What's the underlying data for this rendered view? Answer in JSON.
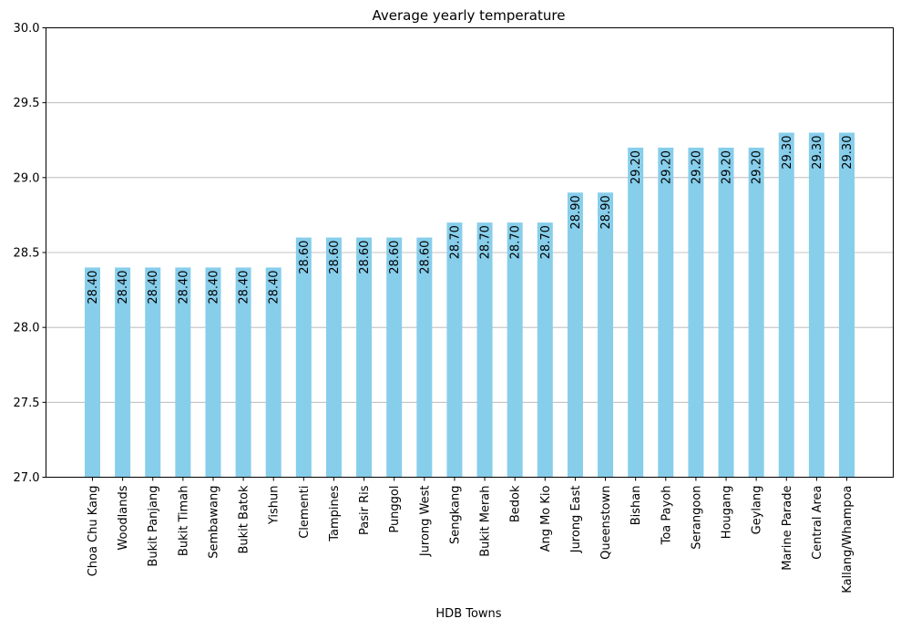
{
  "chart_data": {
    "type": "bar",
    "title": "Average yearly temperature",
    "xlabel": "HDB Towns",
    "ylabel": "",
    "ylim": [
      27.0,
      30.0
    ],
    "yticks": [
      "27.0",
      "27.5",
      "28.0",
      "28.5",
      "29.0",
      "29.5",
      "30.0"
    ],
    "grid": "y-axis only",
    "bar_color": "#87ceeb",
    "categories": [
      "Choa Chu Kang",
      "Woodlands",
      "Bukit Panjang",
      "Bukit Timah",
      "Sembawang",
      "Bukit Batok",
      "Yishun",
      "Clementi",
      "Tampines",
      "Pasir Ris",
      "Punggol",
      "Jurong West",
      "Sengkang",
      "Bukit Merah",
      "Bedok",
      "Ang Mo Kio",
      "Jurong East",
      "Queenstown",
      "Bishan",
      "Toa Payoh",
      "Serangoon",
      "Hougang",
      "Geylang",
      "Marine Parade",
      "Central Area",
      "Kallang/Whampoa"
    ],
    "values": [
      28.4,
      28.4,
      28.4,
      28.4,
      28.4,
      28.4,
      28.4,
      28.6,
      28.6,
      28.6,
      28.6,
      28.6,
      28.7,
      28.7,
      28.7,
      28.7,
      28.9,
      28.9,
      29.2,
      29.2,
      29.2,
      29.2,
      29.2,
      29.3,
      29.3,
      29.3
    ],
    "data_labels": [
      "28.40",
      "28.40",
      "28.40",
      "28.40",
      "28.40",
      "28.40",
      "28.40",
      "28.60",
      "28.60",
      "28.60",
      "28.60",
      "28.60",
      "28.70",
      "28.70",
      "28.70",
      "28.70",
      "28.90",
      "28.90",
      "29.20",
      "29.20",
      "29.20",
      "29.20",
      "29.20",
      "29.30",
      "29.30",
      "29.30"
    ]
  }
}
